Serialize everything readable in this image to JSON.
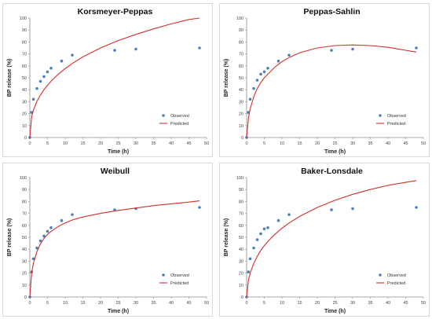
{
  "chart_data": [
    {
      "type": "scatter",
      "title": "Korsmeyer-Peppas",
      "xlabel": "Time (h)",
      "ylabel": "BP release (%)",
      "xlim": [
        0,
        50
      ],
      "ylim": [
        0,
        100
      ],
      "xticks": [
        "0",
        "5",
        "10",
        "15",
        "20",
        "25",
        "30",
        "35",
        "40",
        "45",
        "50"
      ],
      "yticks": [
        "0",
        "10",
        "20",
        "30",
        "40",
        "50",
        "60",
        "70",
        "80",
        "90",
        "100"
      ],
      "grid": false,
      "legend_position": "bottom-right",
      "series": [
        {
          "name": "Observed",
          "kind": "scatter",
          "color": "#4a7fc1",
          "x": [
            0,
            0.5,
            1,
            2,
            3,
            4,
            5,
            6,
            9,
            12,
            24,
            30,
            48
          ],
          "y": [
            0,
            21,
            32,
            41,
            47,
            51,
            55,
            58,
            64,
            69,
            73,
            74,
            75
          ]
        },
        {
          "name": "Predicted",
          "kind": "line",
          "color": "#d0312d",
          "x": [
            0,
            0.5,
            1,
            2,
            3,
            4,
            5,
            6,
            8,
            10,
            12,
            15,
            20,
            25,
            30,
            35,
            40,
            45,
            48
          ],
          "y": [
            0,
            17.3,
            22.9,
            30.3,
            35.6,
            40.0,
            43.7,
            47.1,
            52.8,
            57.7,
            62.0,
            67.5,
            75.0,
            81.2,
            86.3,
            91.0,
            95.1,
            98.8,
            100.9
          ]
        }
      ]
    },
    {
      "type": "scatter",
      "title": "Peppas-Sahlin",
      "xlabel": "Time (h)",
      "ylabel": "BP release (%)",
      "xlim": [
        0,
        50
      ],
      "ylim": [
        0,
        100
      ],
      "xticks": [
        "0",
        "5",
        "10",
        "15",
        "20",
        "25",
        "30",
        "35",
        "40",
        "45",
        "50"
      ],
      "yticks": [
        "0",
        "10",
        "20",
        "30",
        "40",
        "50",
        "60",
        "70",
        "80",
        "90",
        "100"
      ],
      "grid": false,
      "legend_position": "bottom-right",
      "series": [
        {
          "name": "Observed",
          "kind": "scatter",
          "color": "#4a7fc1",
          "x": [
            0,
            0.5,
            1,
            2,
            3,
            4,
            5,
            6,
            9,
            12,
            24,
            30,
            48
          ],
          "y": [
            0,
            21,
            32,
            41,
            48,
            53,
            55,
            58,
            64,
            69,
            73,
            74,
            75
          ]
        },
        {
          "name": "Predicted",
          "kind": "line",
          "color": "#d0312d",
          "x": [
            0,
            0.5,
            1,
            2,
            3,
            4,
            5,
            6,
            8,
            10,
            12,
            15,
            20,
            25,
            30,
            35,
            40,
            45,
            48
          ],
          "y": [
            0,
            16,
            24,
            34,
            41,
            46,
            50,
            53,
            59,
            63.5,
            67,
            71,
            75,
            77,
            77.5,
            77,
            75.5,
            73,
            71.5
          ]
        }
      ]
    },
    {
      "type": "scatter",
      "title": "Weibull",
      "xlabel": "Time (h)",
      "ylabel": "BP release (%)",
      "xlim": [
        0,
        50
      ],
      "ylim": [
        0,
        100
      ],
      "xticks": [
        "0",
        "5",
        "10",
        "15",
        "20",
        "25",
        "30",
        "35",
        "40",
        "45",
        "50"
      ],
      "yticks": [
        "0",
        "10",
        "20",
        "30",
        "40",
        "50",
        "60",
        "70",
        "80",
        "90",
        "100"
      ],
      "grid": false,
      "legend_position": "bottom-right",
      "series": [
        {
          "name": "Observed",
          "kind": "scatter",
          "color": "#4a7fc1",
          "x": [
            0,
            0.5,
            1,
            2,
            3,
            4,
            5,
            6,
            9,
            12,
            24,
            30,
            48
          ],
          "y": [
            0,
            21,
            32,
            41,
            47,
            51,
            55,
            58,
            64,
            69,
            73,
            74,
            75
          ]
        },
        {
          "name": "Predicted",
          "kind": "line",
          "color": "#d0312d",
          "x": [
            0,
            0.5,
            1,
            2,
            3,
            4,
            5,
            6,
            8,
            10,
            12,
            15,
            20,
            25,
            30,
            35,
            40,
            45,
            48
          ],
          "y": [
            0,
            20,
            28,
            38,
            44.5,
            49,
            52.5,
            55,
            59,
            62,
            64.5,
            67,
            70,
            72.5,
            74.5,
            76.5,
            78,
            79.5,
            80.5
          ]
        }
      ]
    },
    {
      "type": "scatter",
      "title": "Baker-Lonsdale",
      "xlabel": "Time (h)",
      "ylabel": "BP release (%)",
      "xlim": [
        0,
        50
      ],
      "ylim": [
        0,
        100
      ],
      "xticks": [
        "0",
        "5",
        "10",
        "15",
        "20",
        "25",
        "30",
        "35",
        "40",
        "45",
        "50"
      ],
      "yticks": [
        "0",
        "10",
        "20",
        "30",
        "40",
        "50",
        "60",
        "70",
        "80",
        "90",
        "100"
      ],
      "grid": false,
      "legend_position": "bottom-right",
      "series": [
        {
          "name": "Observed",
          "kind": "scatter",
          "color": "#4a7fc1",
          "x": [
            0,
            0.5,
            1,
            2,
            3,
            4,
            5,
            6,
            9,
            12,
            24,
            30,
            48
          ],
          "y": [
            0,
            21,
            32,
            41,
            48,
            53,
            57,
            58,
            64,
            69,
            73,
            74,
            75
          ]
        },
        {
          "name": "Predicted",
          "kind": "line",
          "color": "#d0312d",
          "x": [
            0,
            0.5,
            1,
            2,
            3,
            4,
            5,
            6,
            8,
            10,
            12,
            15,
            20,
            25,
            30,
            35,
            40,
            45,
            48
          ],
          "y": [
            0,
            14,
            20,
            28,
            34,
            39,
            43,
            46.5,
            52.5,
            57.5,
            62,
            67.5,
            75,
            81,
            86,
            90,
            93.5,
            96,
            97.5
          ]
        }
      ]
    }
  ]
}
